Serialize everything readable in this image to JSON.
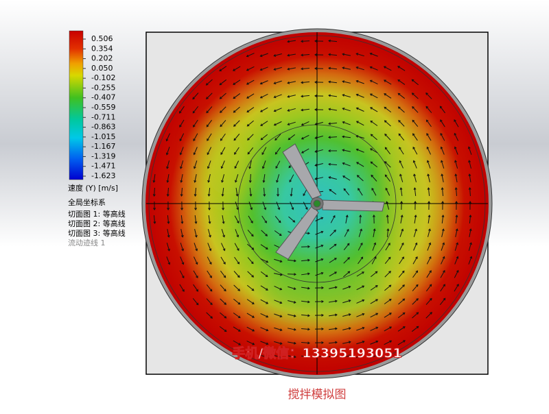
{
  "legend": {
    "ticks": [
      "0.506",
      "0.354",
      "0.202",
      "0.050",
      "-0.102",
      "-0.255",
      "-0.407",
      "-0.559",
      "-0.711",
      "-0.863",
      "-1.015",
      "-1.167",
      "-1.319",
      "-1.471",
      "-1.623"
    ],
    "title": "速度 (Y) [m/s]",
    "items": [
      "全局坐标系",
      "切面图 1: 等高线",
      "切面图 2: 等高线",
      "切面图 3: 等高线",
      "流动迹线 1"
    ]
  },
  "watermark": "手机/微信：13395193051",
  "caption": "搅拌模拟图"
}
